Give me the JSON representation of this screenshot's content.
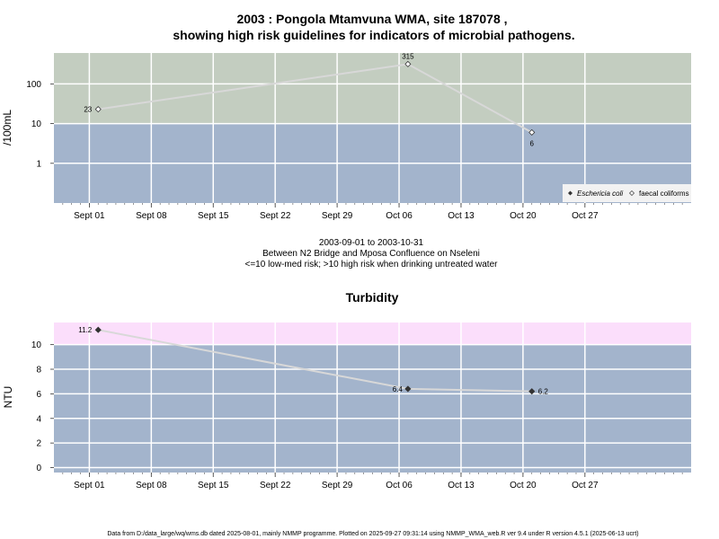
{
  "chart_data": [
    {
      "type": "line",
      "title_line1": "2003 : Pongola Mtamvuna WMA, site 187078 ,",
      "title_line2": "showing high risk guidelines for indicators of microbial pathogens.",
      "ylabel": "/100mL",
      "yscale": "log",
      "ylim": [
        0.1,
        600
      ],
      "yticks": [
        "1",
        "10",
        "100"
      ],
      "xlim": [
        "2003-08-28",
        "2003-11-08"
      ],
      "xticks": [
        {
          "date": "2003-09-01",
          "label": "Sept 01"
        },
        {
          "date": "2003-09-08",
          "label": "Sept 08"
        },
        {
          "date": "2003-09-15",
          "label": "Sept 15"
        },
        {
          "date": "2003-09-22",
          "label": "Sept 22"
        },
        {
          "date": "2003-09-29",
          "label": "Sept 29"
        },
        {
          "date": "2003-10-06",
          "label": "Oct 06"
        },
        {
          "date": "2003-10-13",
          "label": "Oct 13"
        },
        {
          "date": "2003-10-20",
          "label": "Oct 20"
        },
        {
          "date": "2003-10-27",
          "label": "Oct 27"
        }
      ],
      "bands": [
        {
          "from": 0.1,
          "to": 10,
          "color": "#a3b4cc"
        },
        {
          "from": 10,
          "to": 600,
          "color": "#c3cdc0"
        }
      ],
      "series": [
        {
          "name": "faecal coliforms",
          "marker": "open-diamond",
          "points": [
            {
              "x": "2003-09-02",
              "y": 23,
              "label": "23"
            },
            {
              "x": "2003-10-07",
              "y": 315,
              "label": "315"
            },
            {
              "x": "2003-10-21",
              "y": 6,
              "label": "6"
            }
          ]
        }
      ],
      "legend": {
        "position": "bottom-right",
        "entries": [
          {
            "label": "Eschericia coli",
            "marker": "filled-diamond",
            "italic": true
          },
          {
            "label": "faecal coliforms",
            "marker": "open-diamond",
            "italic": false
          }
        ]
      }
    },
    {
      "type": "line",
      "title": "Turbidity",
      "ylabel": "NTU",
      "ylim": [
        -0.4,
        11.8
      ],
      "yticks": [
        "0",
        "2",
        "4",
        "6",
        "8",
        "10"
      ],
      "xlim": [
        "2003-08-28",
        "2003-11-08"
      ],
      "xticks": [
        {
          "date": "2003-09-01",
          "label": "Sept 01"
        },
        {
          "date": "2003-09-08",
          "label": "Sept 08"
        },
        {
          "date": "2003-09-15",
          "label": "Sept 15"
        },
        {
          "date": "2003-09-22",
          "label": "Sept 22"
        },
        {
          "date": "2003-09-29",
          "label": "Sept 29"
        },
        {
          "date": "2003-10-06",
          "label": "Oct 06"
        },
        {
          "date": "2003-10-13",
          "label": "Oct 13"
        },
        {
          "date": "2003-10-20",
          "label": "Oct 20"
        },
        {
          "date": "2003-10-27",
          "label": "Oct 27"
        }
      ],
      "bands": [
        {
          "from": -0.4,
          "to": 10,
          "color": "#a3b4cc"
        },
        {
          "from": 10,
          "to": 11.8,
          "color": "#fbdefb"
        }
      ],
      "series": [
        {
          "marker": "filled-diamond",
          "points": [
            {
              "x": "2003-09-02",
              "y": 11.2,
              "label": "11.2"
            },
            {
              "x": "2003-10-07",
              "y": 6.4,
              "label": "6.4"
            },
            {
              "x": "2003-10-21",
              "y": 6.2,
              "label": "6.2"
            }
          ]
        }
      ]
    }
  ],
  "middle_text": {
    "line1": "2003-09-01 to 2003-10-31",
    "line2": "Between N2 Bridge and Mposa Confluence on Nseleni",
    "line3": "<=10 low-med risk; >10 high risk when drinking untreated water"
  },
  "footer": "Data from D:/data_large/wq/wms.db dated 2025-08-01, mainly NMMP programme. Plotted on 2025-09-27 09:31:14 using NMMP_WMA_web.R ver 9.4 under R version 4.5.1 (2025-06-13 ucrt)",
  "colors": {
    "line": "#d8d8d8",
    "grid": "#ffffff",
    "point_fill": "#333333"
  }
}
